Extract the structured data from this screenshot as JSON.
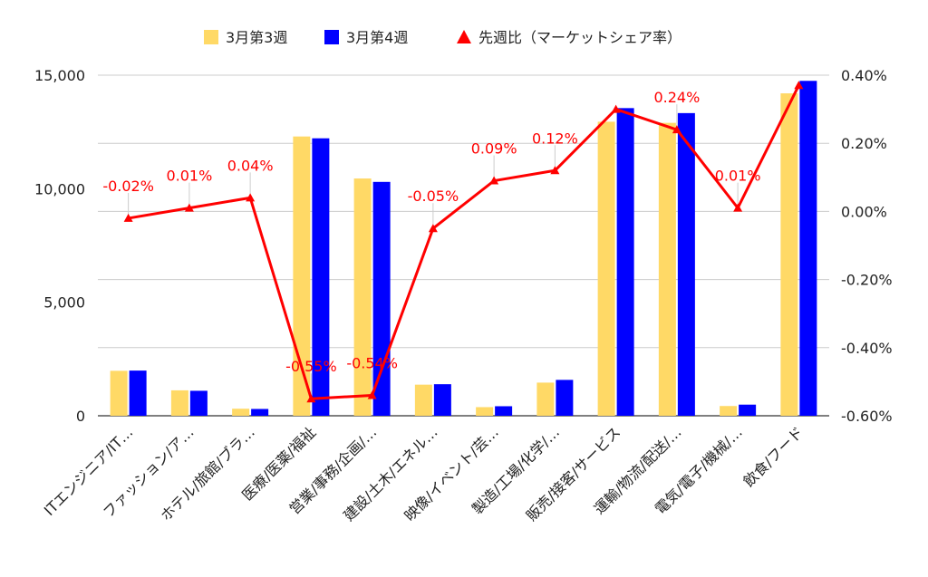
{
  "chart_data": {
    "type": "bar",
    "categories": [
      "ITエンジニア/IT…",
      "ファッション/ア…",
      "ホテル/旅館/ブラ…",
      "医療/医薬/福祉",
      "営業/事務/企画/…",
      "建設/土木/エネル…",
      "映像/イベント/芸…",
      "製造/工場/化学/…",
      "販売/接客/サービス",
      "運輸/物流/配送/…",
      "電気/電子/機械/…",
      "飲食/フード"
    ],
    "series": [
      {
        "name": "3月第3週",
        "type": "bar",
        "axis": "left",
        "color": "#FFD966",
        "values": [
          1980,
          1120,
          310,
          12300,
          10450,
          1370,
          380,
          1460,
          12950,
          12900,
          430,
          14200
        ]
      },
      {
        "name": "3月第4週",
        "type": "bar",
        "axis": "left",
        "color": "#0000FF",
        "values": [
          1990,
          1100,
          300,
          12220,
          10300,
          1390,
          420,
          1580,
          13550,
          13330,
          490,
          14750
        ]
      },
      {
        "name": "先週比（マーケットシェア率）",
        "type": "line",
        "axis": "right",
        "color": "#FF0000",
        "values": [
          -0.02,
          0.01,
          0.04,
          -0.55,
          -0.54,
          -0.05,
          0.09,
          0.12,
          0.3,
          0.24,
          0.01,
          0.37
        ],
        "labels": [
          "-0.02%",
          "0.01%",
          "0.04%",
          "-0.55%",
          "-0.54%",
          "-0.05%",
          "0.09%",
          "0.12%",
          "",
          "0.24%",
          "0.01%",
          ""
        ]
      }
    ],
    "y_left": {
      "min": 0,
      "max": 15000,
      "ticks": [
        0,
        5000,
        10000,
        15000
      ],
      "tick_labels": [
        "0",
        "5,000",
        "10,000",
        "15,000"
      ]
    },
    "y_right": {
      "min": -0.6,
      "max": 0.4,
      "ticks": [
        -0.6,
        -0.4,
        -0.2,
        0.0,
        0.2,
        0.4
      ],
      "tick_labels": [
        "-0.60%",
        "-0.40%",
        "-0.20%",
        "0.00%",
        "0.20%",
        "0.40%"
      ]
    },
    "grid": true,
    "legend_position": "top"
  }
}
